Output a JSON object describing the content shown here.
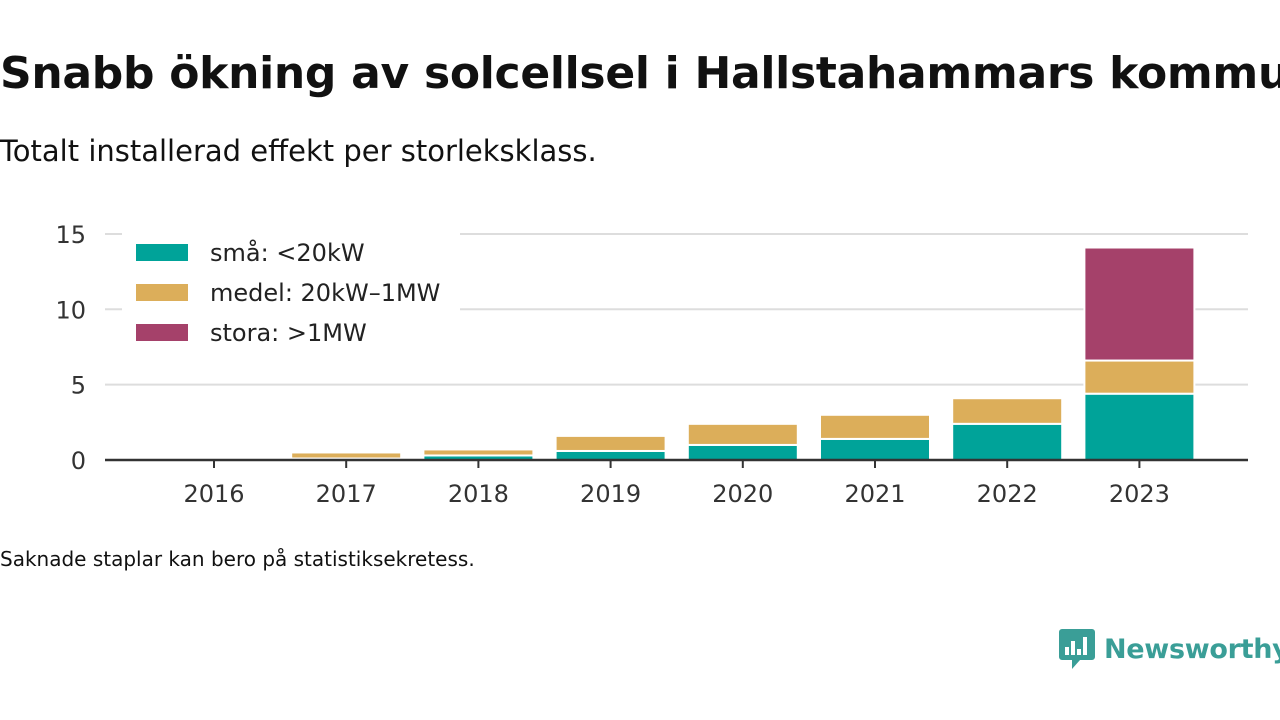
{
  "header": {
    "title": "Snabb ökning av solcellsel i Hallstahammars kommun",
    "subtitle": "Totalt installerad effekt per storleksklass."
  },
  "footer": {
    "note": "Saknade staplar kan bero på statistiksekretess.",
    "brand": "Newsworthy"
  },
  "chart_data": {
    "type": "bar",
    "stacked": true,
    "categories": [
      "2016",
      "2017",
      "2018",
      "2019",
      "2020",
      "2021",
      "2022",
      "2023"
    ],
    "series": [
      {
        "name": "små: <20kW",
        "color": "#00a399",
        "values": [
          0.0,
          0.1,
          0.3,
          0.6,
          1.0,
          1.4,
          2.4,
          4.4
        ]
      },
      {
        "name": "medel: 20kW–1MW",
        "color": "#dcae5a",
        "values": [
          0.0,
          0.4,
          0.4,
          1.0,
          1.4,
          1.6,
          1.7,
          2.2
        ]
      },
      {
        "name": "stora: >1MW",
        "color": "#a5416a",
        "values": [
          0.0,
          0.0,
          0.0,
          0.0,
          0.0,
          0.0,
          0.0,
          7.5
        ]
      }
    ],
    "yticks": [
      0,
      5,
      10,
      15
    ],
    "ylim": [
      0,
      15.6
    ],
    "grid": true,
    "legend": "top-left"
  }
}
